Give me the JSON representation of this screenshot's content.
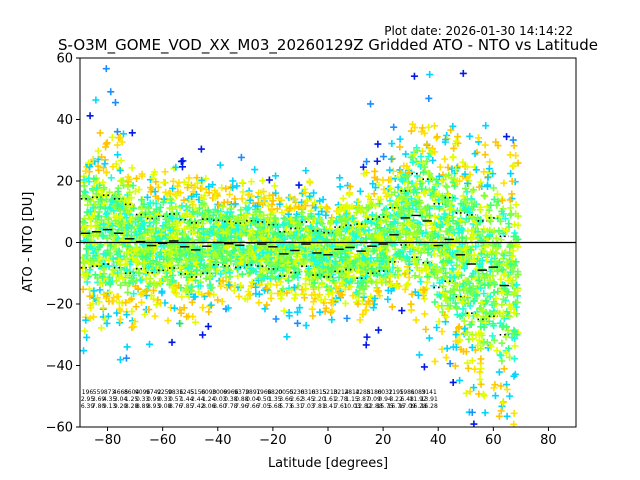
{
  "chart_data": {
    "type": "scatter",
    "title": "S-O3M_GOME_VOD_XX_M03_20260129Z Gridded ATO - NTO vs Latitude",
    "plot_date": "Plot date: 2026-01-30 14:14:22",
    "xlabel": "Latitude [degrees]",
    "ylabel": "ATO - NTO [DU]",
    "xlim": [
      -90,
      90
    ],
    "ylim": [
      -60,
      60
    ],
    "xticks": [
      -80,
      -60,
      -40,
      -20,
      0,
      20,
      40,
      60,
      80
    ],
    "yticks": [
      -60,
      -40,
      -20,
      0,
      20,
      40,
      60
    ],
    "zero_line": 0,
    "bin_width": 4,
    "bins": [
      {
        "lat": -88,
        "count": "196",
        "mean": "2.95",
        "std": "6.39"
      },
      {
        "lat": -84,
        "count": "559",
        "mean": "3.69",
        "std": "7.80"
      },
      {
        "lat": -80,
        "count": "873",
        "mean": "4.35",
        "std": "9.13"
      },
      {
        "lat": -76,
        "count": "4665",
        "mean": "3.04",
        "std": "9.20"
      },
      {
        "lat": -72,
        "count": "8604",
        "mean": "1.25",
        "std": "8.28"
      },
      {
        "lat": -68,
        "count": "9096",
        "mean": "0.33",
        "std": "8.89"
      },
      {
        "lat": -64,
        "count": "9742",
        "mean": "0.99",
        "std": "8.93"
      },
      {
        "lat": -60,
        "count": "9250",
        "mean": "0.33",
        "std": "9.08"
      },
      {
        "lat": -56,
        "count": "9836",
        "mean": "0.57",
        "std": "8.76"
      },
      {
        "lat": -52,
        "count": "1245",
        "mean": "1.44",
        "std": "7.85"
      },
      {
        "lat": -48,
        "count": "5156",
        "mean": "2.44",
        "std": "7.42"
      },
      {
        "lat": -44,
        "count": "0090",
        "mean": "1.24",
        "std": "8.06"
      },
      {
        "lat": -40,
        "count": "3009",
        "mean": "0.03",
        "std": "8.60"
      },
      {
        "lat": -36,
        "count": "6966",
        "mean": "0.38",
        "std": "7.78"
      },
      {
        "lat": -32,
        "count": "9379",
        "mean": "0.88",
        "std": "7.96"
      },
      {
        "lat": -28,
        "count": "2891",
        "mean": "0.04",
        "std": "7.66"
      },
      {
        "lat": -24,
        "count": "7966",
        "mean": "0.50",
        "std": "7.05"
      },
      {
        "lat": -20,
        "count": "9820",
        "mean": "1.35",
        "std": "5.68"
      },
      {
        "lat": -16,
        "count": "0055",
        "mean": "3.66",
        "std": "5.73"
      },
      {
        "lat": -12,
        "count": "0230",
        "mean": "2.62",
        "std": "6.31"
      },
      {
        "lat": -8,
        "count": "6310",
        "mean": "3.45",
        "std": "7.03"
      },
      {
        "lat": -4,
        "count": "6315",
        "mean": "2.20",
        "std": "7.81"
      },
      {
        "lat": 0,
        "count": "5210",
        "mean": "1.61",
        "std": "8.41"
      },
      {
        "lat": 4,
        "count": "3214",
        "mean": "2.78",
        "std": "7.61"
      },
      {
        "lat": 8,
        "count": "2812",
        "mean": "1.15",
        "std": "10.03"
      },
      {
        "lat": 12,
        "count": "4288",
        "mean": "3.87",
        "std": "12.82"
      },
      {
        "lat": 16,
        "count": "5180",
        "mean": "0.09",
        "std": "12.88"
      },
      {
        "lat": 20,
        "count": "6032",
        "mean": "0.94",
        "std": "15.75"
      },
      {
        "lat": 24,
        "count": "1195",
        "mean": "3.22",
        "std": "16.76"
      },
      {
        "lat": 28,
        "count": "1981",
        "mean": "6.48",
        "std": "17.09"
      },
      {
        "lat": 32,
        "count": "6089",
        "mean": "11.92",
        "std": "16.28"
      },
      {
        "lat": 36,
        "count": "3141",
        "mean": "13.91",
        "std": "16.28"
      }
    ],
    "mean_steps": [
      {
        "lat": -88,
        "mean": 3.0
      },
      {
        "lat": -84,
        "mean": 3.5
      },
      {
        "lat": -80,
        "mean": 4.2
      },
      {
        "lat": -76,
        "mean": 3.0
      },
      {
        "lat": -72,
        "mean": 1.2
      },
      {
        "lat": -68,
        "mean": 0.3
      },
      {
        "lat": -64,
        "mean": -1.0
      },
      {
        "lat": -60,
        "mean": -0.3
      },
      {
        "lat": -56,
        "mean": 0.5
      },
      {
        "lat": -52,
        "mean": -1.4
      },
      {
        "lat": -48,
        "mean": -2.4
      },
      {
        "lat": -44,
        "mean": -1.2
      },
      {
        "lat": -40,
        "mean": 0.0
      },
      {
        "lat": -36,
        "mean": -0.4
      },
      {
        "lat": -32,
        "mean": -0.9
      },
      {
        "lat": -28,
        "mean": -0.1
      },
      {
        "lat": -24,
        "mean": -0.5
      },
      {
        "lat": -20,
        "mean": -1.4
      },
      {
        "lat": -16,
        "mean": -3.7
      },
      {
        "lat": -12,
        "mean": -2.6
      },
      {
        "lat": -8,
        "mean": -0.5
      },
      {
        "lat": -4,
        "mean": -3.4
      },
      {
        "lat": 0,
        "mean": -4.0
      },
      {
        "lat": 4,
        "mean": -2.2
      },
      {
        "lat": 8,
        "mean": -1.6
      },
      {
        "lat": 12,
        "mean": -2.8
      },
      {
        "lat": 16,
        "mean": -1.2
      },
      {
        "lat": 20,
        "mean": -0.5
      },
      {
        "lat": 24,
        "mean": 2.5
      },
      {
        "lat": 28,
        "mean": 8.0
      },
      {
        "lat": 32,
        "mean": 8.8
      },
      {
        "lat": 36,
        "mean": 7.0
      },
      {
        "lat": 40,
        "mean": -1.0
      },
      {
        "lat": 44,
        "mean": 1.0
      },
      {
        "lat": 48,
        "mean": -4.0
      },
      {
        "lat": 52,
        "mean": -7.0
      },
      {
        "lat": 56,
        "mean": -9.0
      },
      {
        "lat": 60,
        "mean": -8.0
      },
      {
        "lat": 64,
        "mean": -14.0
      }
    ],
    "scatter_colors": [
      "#19ffe0",
      "#3dff7a",
      "#7aff47",
      "#b0ff1f",
      "#e1ff00",
      "#ffe000",
      "#ffc400",
      "#00d4ff",
      "#1a8cff",
      "#0019e6"
    ],
    "marker": "+"
  }
}
